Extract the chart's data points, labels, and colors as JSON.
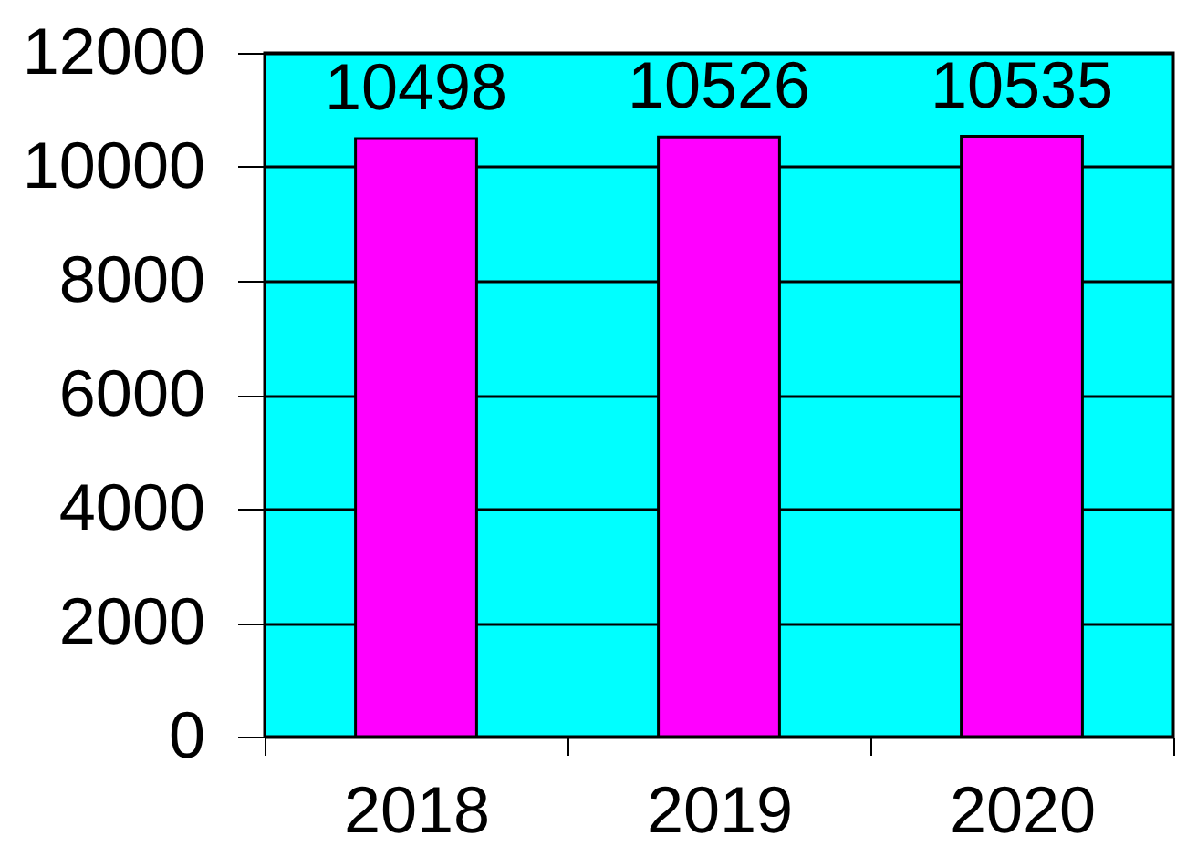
{
  "chart_data": {
    "type": "bar",
    "categories": [
      "2018",
      "2019",
      "2020"
    ],
    "values": [
      10498,
      10526,
      10535
    ],
    "color": "#ff00ff",
    "ylim": [
      0,
      12000
    ],
    "yticks": [
      0,
      2000,
      4000,
      6000,
      8000,
      10000,
      12000
    ],
    "grid": "y",
    "data_labels": true
  }
}
